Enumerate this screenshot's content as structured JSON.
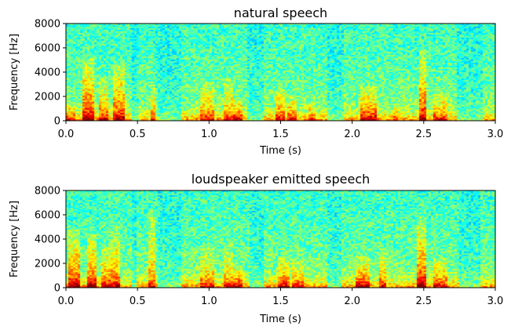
{
  "chart_data": [
    {
      "type": "heatmap",
      "title": "natural speech",
      "xlabel": "Time (s)",
      "ylabel": "Frequency [Hz]",
      "xlim": [
        0.0,
        3.0
      ],
      "ylim": [
        0,
        8000
      ],
      "xticks": [
        "0.0",
        "0.5",
        "1.0",
        "1.5",
        "2.0",
        "2.5",
        "3.0"
      ],
      "yticks": [
        "0",
        "2000",
        "4000",
        "6000",
        "8000"
      ],
      "colormap": "jet",
      "grid": false,
      "bursts": [
        {
          "t": 0.02,
          "w": 0.08,
          "f": 1400,
          "i": 0.55
        },
        {
          "t": 0.16,
          "w": 0.09,
          "f": 5200,
          "i": 0.95
        },
        {
          "t": 0.26,
          "w": 0.06,
          "f": 3600,
          "i": 0.7
        },
        {
          "t": 0.37,
          "w": 0.07,
          "f": 4800,
          "i": 0.85
        },
        {
          "t": 0.62,
          "w": 0.04,
          "f": 3000,
          "i": 0.55
        },
        {
          "t": 0.98,
          "w": 0.1,
          "f": 3200,
          "i": 0.6
        },
        {
          "t": 1.14,
          "w": 0.06,
          "f": 3600,
          "i": 0.55
        },
        {
          "t": 1.2,
          "w": 0.08,
          "f": 1800,
          "i": 0.7
        },
        {
          "t": 1.5,
          "w": 0.06,
          "f": 2600,
          "i": 0.7
        },
        {
          "t": 1.58,
          "w": 0.07,
          "f": 2200,
          "i": 0.6
        },
        {
          "t": 1.72,
          "w": 0.06,
          "f": 1400,
          "i": 0.5
        },
        {
          "t": 2.12,
          "w": 0.12,
          "f": 2800,
          "i": 0.8
        },
        {
          "t": 2.3,
          "w": 0.04,
          "f": 1400,
          "i": 0.5
        },
        {
          "t": 2.49,
          "w": 0.06,
          "f": 5800,
          "i": 0.95
        },
        {
          "t": 2.62,
          "w": 0.1,
          "f": 2500,
          "i": 0.6
        }
      ],
      "pauses": [
        {
          "t": 0.48,
          "w": 0.05
        },
        {
          "t": 0.72,
          "w": 0.18
        },
        {
          "t": 1.33,
          "w": 0.12
        },
        {
          "t": 1.88,
          "w": 0.12
        },
        {
          "t": 2.82,
          "w": 0.18
        }
      ]
    },
    {
      "type": "heatmap",
      "title": "loudspeaker emitted speech",
      "xlabel": "Time (s)",
      "ylabel": "Frequency [Hz]",
      "xlim": [
        0.0,
        3.0
      ],
      "ylim": [
        0,
        8000
      ],
      "xticks": [
        "0.0",
        "0.5",
        "1.0",
        "1.5",
        "2.0",
        "2.5",
        "3.0"
      ],
      "yticks": [
        "0",
        "2000",
        "4000",
        "6000",
        "8000"
      ],
      "colormap": "jet",
      "grid": false,
      "bursts": [
        {
          "t": 0.06,
          "w": 0.08,
          "f": 4800,
          "i": 0.9
        },
        {
          "t": 0.18,
          "w": 0.08,
          "f": 4400,
          "i": 0.85
        },
        {
          "t": 0.28,
          "w": 0.06,
          "f": 3600,
          "i": 0.7
        },
        {
          "t": 0.35,
          "w": 0.06,
          "f": 5000,
          "i": 0.75
        },
        {
          "t": 0.6,
          "w": 0.05,
          "f": 6500,
          "i": 0.6
        },
        {
          "t": 0.98,
          "w": 0.1,
          "f": 3200,
          "i": 0.6
        },
        {
          "t": 1.14,
          "w": 0.06,
          "f": 3600,
          "i": 0.55
        },
        {
          "t": 1.2,
          "w": 0.08,
          "f": 1800,
          "i": 0.7
        },
        {
          "t": 1.52,
          "w": 0.07,
          "f": 2600,
          "i": 0.7
        },
        {
          "t": 1.62,
          "w": 0.07,
          "f": 2200,
          "i": 0.55
        },
        {
          "t": 2.08,
          "w": 0.1,
          "f": 2600,
          "i": 0.75
        },
        {
          "t": 2.22,
          "w": 0.05,
          "f": 3200,
          "i": 0.6
        },
        {
          "t": 2.48,
          "w": 0.07,
          "f": 5800,
          "i": 0.95
        },
        {
          "t": 2.62,
          "w": 0.1,
          "f": 2500,
          "i": 0.6
        }
      ],
      "pauses": [
        {
          "t": 0.48,
          "w": 0.04
        },
        {
          "t": 0.72,
          "w": 0.16
        },
        {
          "t": 1.33,
          "w": 0.1
        },
        {
          "t": 1.88,
          "w": 0.1
        },
        {
          "t": 2.82,
          "w": 0.16
        }
      ]
    }
  ]
}
